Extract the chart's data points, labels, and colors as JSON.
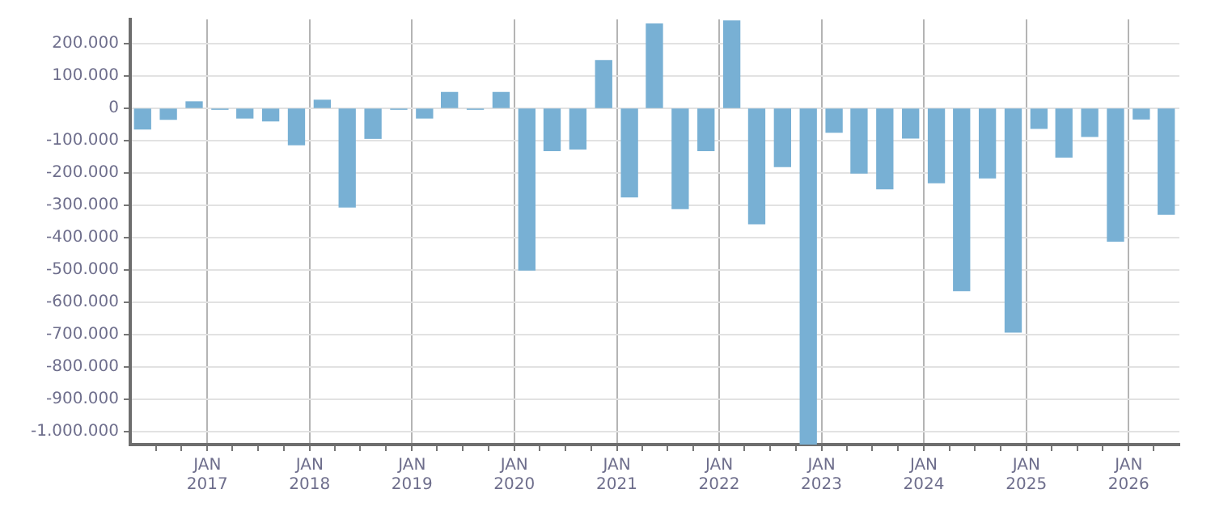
{
  "chart_data": {
    "type": "bar",
    "x": [
      "2016-05-15",
      "2016-08-15",
      "2016-11-15",
      "2017-02-15",
      "2017-05-15",
      "2017-08-15",
      "2017-11-15",
      "2018-02-15",
      "2018-05-15",
      "2018-08-15",
      "2018-11-15",
      "2019-02-15",
      "2019-05-15",
      "2019-08-15",
      "2019-11-15",
      "2020-02-15",
      "2020-05-15",
      "2020-08-15",
      "2020-11-15",
      "2021-02-15",
      "2021-05-15",
      "2021-08-15",
      "2021-11-15",
      "2022-02-15",
      "2022-05-15",
      "2022-08-15",
      "2022-11-15",
      "2023-02-15",
      "2023-05-15",
      "2023-08-15",
      "2023-11-15",
      "2024-02-15",
      "2024-05-15",
      "2024-08-15",
      "2024-11-15",
      "2025-02-15",
      "2025-05-15",
      "2025-08-15",
      "2025-11-15",
      "2026-02-15",
      "2026-05-15"
    ],
    "values": [
      -64000,
      -34000,
      20000,
      -3000,
      -30000,
      -39000,
      -113000,
      25000,
      -305000,
      -93000,
      -3000,
      -30000,
      49000,
      -3000,
      49000,
      -500000,
      -131000,
      -126000,
      148000,
      -274000,
      261000,
      -310000,
      -131000,
      270000,
      -357000,
      -180000,
      -1040000,
      -74000,
      -200000,
      -249000,
      -92000,
      -230000,
      -564000,
      -215000,
      -692000,
      -62000,
      -151000,
      -87000,
      -411000,
      -33000,
      -328000
    ],
    "color": "#78b0d4",
    "xlim": [
      "2016-04-01",
      "2026-07-01"
    ],
    "xticks": [
      {
        "value": "2016-07-01",
        "label": null
      },
      {
        "value": "2016-10-01",
        "label": null
      },
      {
        "value": "2017-01-01",
        "label": "JAN 2017"
      },
      {
        "value": "2017-04-01",
        "label": null
      },
      {
        "value": "2017-07-01",
        "label": null
      },
      {
        "value": "2017-10-01",
        "label": null
      },
      {
        "value": "2018-01-01",
        "label": "JAN 2018"
      },
      {
        "value": "2018-04-01",
        "label": null
      },
      {
        "value": "2018-07-01",
        "label": null
      },
      {
        "value": "2018-10-01",
        "label": null
      },
      {
        "value": "2019-01-01",
        "label": "JAN 2019"
      },
      {
        "value": "2019-04-01",
        "label": null
      },
      {
        "value": "2019-07-01",
        "label": null
      },
      {
        "value": "2019-10-01",
        "label": null
      },
      {
        "value": "2020-01-01",
        "label": "JAN 2020"
      },
      {
        "value": "2020-04-01",
        "label": null
      },
      {
        "value": "2020-07-01",
        "label": null
      },
      {
        "value": "2020-10-01",
        "label": null
      },
      {
        "value": "2021-01-01",
        "label": "JAN 2021"
      },
      {
        "value": "2021-04-01",
        "label": null
      },
      {
        "value": "2021-07-01",
        "label": null
      },
      {
        "value": "2021-10-01",
        "label": null
      },
      {
        "value": "2022-01-01",
        "label": "JAN 2022"
      },
      {
        "value": "2022-04-01",
        "label": null
      },
      {
        "value": "2022-07-01",
        "label": null
      },
      {
        "value": "2022-10-01",
        "label": null
      },
      {
        "value": "2023-01-01",
        "label": "JAN 2023"
      },
      {
        "value": "2023-04-01",
        "label": null
      },
      {
        "value": "2023-07-01",
        "label": null
      },
      {
        "value": "2023-10-01",
        "label": null
      },
      {
        "value": "2024-01-01",
        "label": "JAN 2024"
      },
      {
        "value": "2024-04-01",
        "label": null
      },
      {
        "value": "2024-07-01",
        "label": null
      },
      {
        "value": "2024-10-01",
        "label": null
      },
      {
        "value": "2025-01-01",
        "label": "JAN 2025"
      },
      {
        "value": "2025-04-01",
        "label": null
      },
      {
        "value": "2025-07-01",
        "label": null
      },
      {
        "value": "2025-10-01",
        "label": null
      },
      {
        "value": "2026-01-01",
        "label": "JAN 2026"
      },
      {
        "value": "2026-04-01",
        "label": null
      }
    ],
    "ylim": [
      -1040000,
      275000
    ],
    "yticks": [
      {
        "value": -1000000,
        "label": "-1.000.000"
      },
      {
        "value": -900000,
        "label": "-900.000"
      },
      {
        "value": -800000,
        "label": "-800.000"
      },
      {
        "value": -700000,
        "label": "-700.000"
      },
      {
        "value": -600000,
        "label": "-600.000"
      },
      {
        "value": -500000,
        "label": "-500.000"
      },
      {
        "value": -400000,
        "label": "-400.000"
      },
      {
        "value": -300000,
        "label": "-300.000"
      },
      {
        "value": -200000,
        "label": "-200.000"
      },
      {
        "value": -100000,
        "label": "-100.000"
      },
      {
        "value": 0,
        "label": "0"
      },
      {
        "value": 100000,
        "label": "100.000"
      },
      {
        "value": 200000,
        "label": "200.000"
      }
    ],
    "grid": true,
    "legend": false
  }
}
